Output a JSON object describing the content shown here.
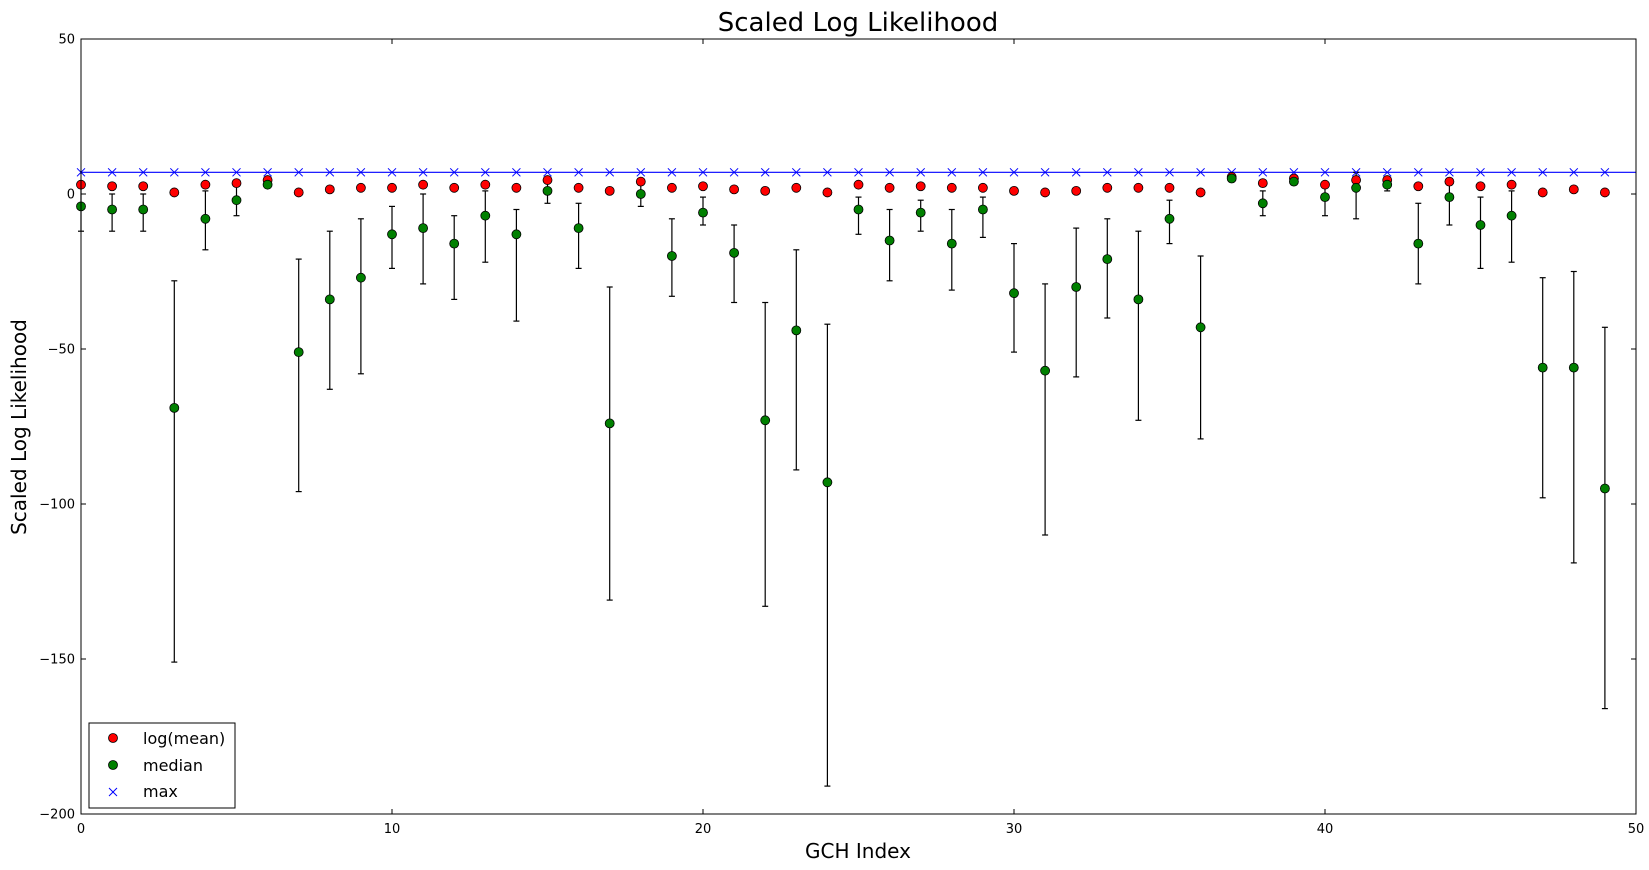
{
  "chart_data": {
    "type": "scatter",
    "title": "Scaled Log Likelihood",
    "xlabel": "GCH Index",
    "ylabel": "Scaled Log Likelihood",
    "xlim": [
      0,
      50
    ],
    "ylim": [
      -200,
      50
    ],
    "xticks": [
      0,
      10,
      20,
      30,
      40,
      50
    ],
    "yticks": [
      -200,
      -150,
      -100,
      -50,
      0,
      50
    ],
    "xtick_labels": [
      "0",
      "10",
      "20",
      "30",
      "40",
      "50"
    ],
    "ytick_labels": [
      "−200",
      "−150",
      "−100",
      "−50",
      "0",
      "50"
    ],
    "grid": false,
    "legend_position": "bottom-left",
    "x": [
      0,
      1,
      2,
      3,
      4,
      5,
      6,
      7,
      8,
      9,
      10,
      11,
      12,
      13,
      14,
      15,
      16,
      17,
      18,
      19,
      20,
      21,
      22,
      23,
      24,
      25,
      26,
      27,
      28,
      29,
      30,
      31,
      32,
      33,
      34,
      35,
      36,
      37,
      38,
      39,
      40,
      41,
      42,
      43,
      44,
      45,
      46,
      47,
      48,
      49
    ],
    "max_line": 7,
    "series": [
      {
        "name": "log(mean)",
        "marker": "circle",
        "color": "#ff0000",
        "values": [
          3,
          2.5,
          2.5,
          0.5,
          3,
          3.5,
          4.5,
          0.5,
          1.5,
          2,
          2,
          3,
          2,
          3,
          2,
          4.5,
          2,
          1,
          4,
          2,
          2.5,
          1.5,
          1,
          2,
          0.5,
          3,
          2,
          2.5,
          2,
          2,
          1,
          0.5,
          1,
          2,
          2,
          2,
          0.5,
          5.5,
          3.5,
          5,
          3,
          4.5,
          4.5,
          2.5,
          4,
          2.5,
          3,
          0.5,
          1.5,
          0.5
        ]
      },
      {
        "name": "median",
        "marker": "circle",
        "color": "#008000",
        "values": [
          -4,
          -5,
          -5,
          -69,
          -8,
          -2,
          3,
          -51,
          -34,
          -27,
          -13,
          -11,
          -16,
          -7,
          -13,
          1,
          -11,
          -74,
          0,
          -20,
          -6,
          -19,
          -73,
          -44,
          -93,
          -5,
          -15,
          -6,
          -16,
          -5,
          -32,
          -57,
          -30,
          -21,
          -34,
          -8,
          -43,
          5,
          -3,
          4,
          -1,
          2,
          3,
          -16,
          -1,
          -10,
          -7,
          -56,
          -56,
          -95
        ],
        "err_low": [
          -12,
          -12,
          -12,
          -151,
          -18,
          -7,
          2,
          -96,
          -63,
          -58,
          -24,
          -29,
          -34,
          -22,
          -41,
          -3,
          -24,
          -131,
          -4,
          -33,
          -10,
          -35,
          -133,
          -89,
          -191,
          -13,
          -28,
          -12,
          -31,
          -14,
          -51,
          -110,
          -59,
          -40,
          -73,
          -16,
          -79,
          4,
          -7,
          3,
          -7,
          -8,
          1,
          -29,
          -10,
          -24,
          -22,
          -98,
          -119,
          -166
        ],
        "err_high": [
          4,
          0,
          0,
          -28,
          1,
          3,
          4,
          -21,
          -12,
          -8,
          -4,
          0,
          -7,
          1,
          -5,
          5,
          -3,
          -30,
          4,
          -8,
          -1,
          -10,
          -35,
          -18,
          -42,
          -1,
          -5,
          -2,
          -5,
          -1,
          -16,
          -29,
          -11,
          -8,
          -12,
          -2,
          -20,
          6,
          1,
          5,
          4,
          7,
          4,
          -3,
          5,
          -1,
          1,
          -27,
          -25,
          -43
        ]
      },
      {
        "name": "max",
        "marker": "x",
        "color": "#0000ff",
        "values": [
          7,
          7,
          7,
          7,
          7,
          7,
          7,
          7,
          7,
          7,
          7,
          7,
          7,
          7,
          7,
          7,
          7,
          7,
          7,
          7,
          7,
          7,
          7,
          7,
          7,
          7,
          7,
          7,
          7,
          7,
          7,
          7,
          7,
          7,
          7,
          7,
          7,
          7,
          7,
          7,
          7,
          7,
          7,
          7,
          7,
          7,
          7,
          7,
          7,
          7
        ]
      }
    ]
  }
}
